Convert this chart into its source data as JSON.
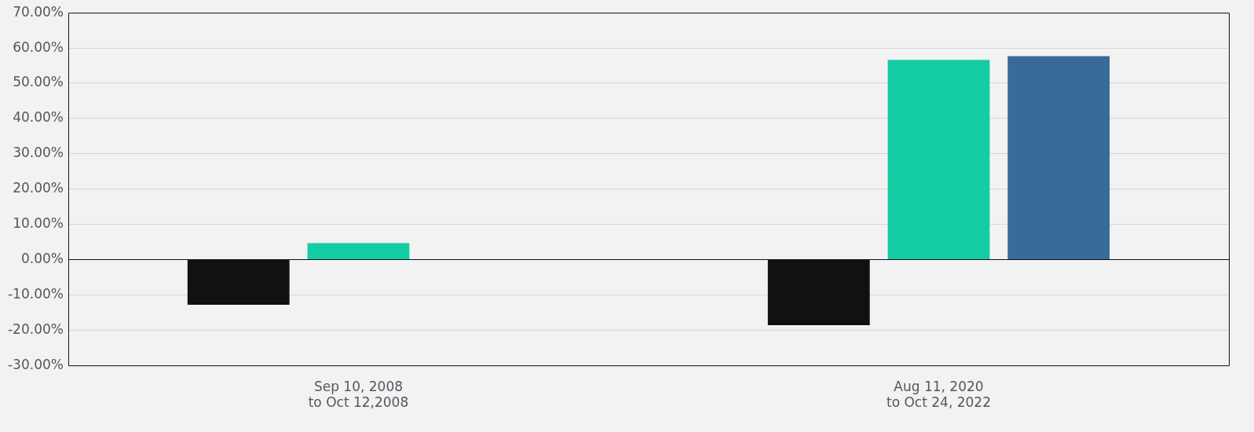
{
  "chart_data": {
    "type": "bar",
    "categories": [
      "Sep 10, 2008\nto Oct 12,2008",
      "Aug 11, 2020\nto Oct 24, 2022"
    ],
    "series": [
      {
        "color": "#111114",
        "values": [
          -12.8,
          -18.6
        ]
      },
      {
        "color": "#14cca3",
        "values": [
          4.7,
          56.6
        ]
      },
      {
        "color": "#386a9a",
        "values": [
          null,
          57.7
        ]
      }
    ],
    "ylim": [
      -30,
      70
    ],
    "yticks": [
      {
        "value": -30,
        "label": "-30.00%"
      },
      {
        "value": -20,
        "label": "-20.00%"
      },
      {
        "value": -10,
        "label": "-10.00%"
      },
      {
        "value": 0,
        "label": "0.00%"
      },
      {
        "value": 10,
        "label": "10.00%"
      },
      {
        "value": 20,
        "label": "20.00%"
      },
      {
        "value": 30,
        "label": "30.00%"
      },
      {
        "value": 40,
        "label": "40.00%"
      },
      {
        "value": 50,
        "label": "50.00%"
      },
      {
        "value": 60,
        "label": "60.00%"
      },
      {
        "value": 70,
        "label": "70.00%"
      }
    ],
    "grid": "y",
    "legend": false
  }
}
